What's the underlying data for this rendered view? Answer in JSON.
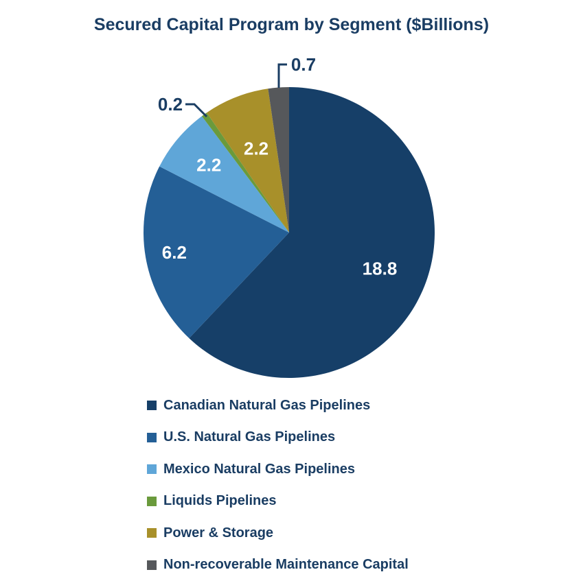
{
  "chart_data": {
    "type": "pie",
    "title": "Secured Capital Program by Segment ($Billions)",
    "categories": [
      "Canadian Natural Gas Pipelines",
      "U.S. Natural Gas Pipelines",
      "Mexico Natural Gas Pipelines",
      "Liquids Pipelines",
      "Power & Storage",
      "Non-recoverable Maintenance Capital"
    ],
    "values": [
      18.8,
      6.2,
      2.2,
      0.2,
      2.2,
      0.7
    ],
    "labels": [
      "18.8",
      "6.2",
      "2.2",
      "0.2",
      "2.2",
      "0.7"
    ],
    "colors": [
      "#163f68",
      "#245f96",
      "#5fa6d8",
      "#6a9a3c",
      "#a8902a",
      "#56585b"
    ],
    "label_colors": [
      "#ffffff",
      "#ffffff",
      "#ffffff",
      "#1a3d63",
      "#ffffff",
      "#1a3d63"
    ],
    "legend_position": "bottom",
    "start": "12 o'clock",
    "direction": "clockwise"
  }
}
